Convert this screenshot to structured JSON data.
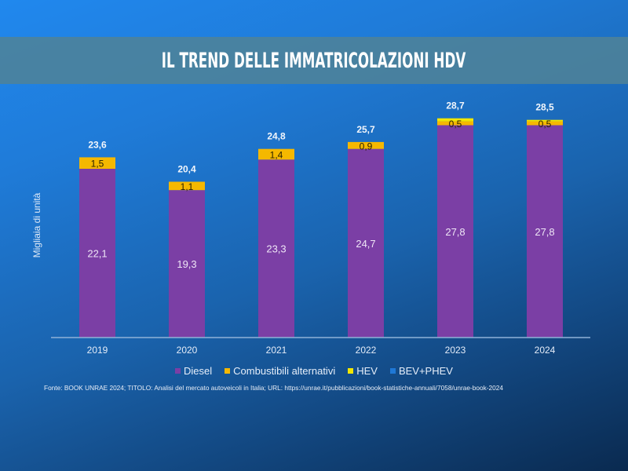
{
  "header": {
    "title": "IL TREND DELLE IMMATRICOLAZIONI HDV"
  },
  "source_note": "Fonte: BOOK UNRAE 2024; TITOLO: Analisi del mercato autoveicoli in Italia; URL: https://unrae.it/pubblicazioni/book-statistiche-annuali/7058/unrae-book-2024",
  "colors": {
    "diesel": "#7b3fa5",
    "combustibili_alternativi": "#f5b800",
    "hev": "#f2e600",
    "bev_phev": "#1f78d6",
    "background_top": "#2088ee",
    "background_bottom": "#0a2a50",
    "title_band": "#50829a"
  },
  "chart_data": {
    "type": "bar",
    "stacked": true,
    "title": "IL TREND DELLE IMMATRICOLAZIONI HDV",
    "xlabel": "",
    "ylabel": "Migliaia di unità",
    "categories": [
      "2019",
      "2020",
      "2021",
      "2022",
      "2023",
      "2024"
    ],
    "series": [
      {
        "name": "Diesel",
        "values": [
          22.1,
          19.3,
          23.3,
          24.7,
          27.8,
          27.8
        ],
        "labels": [
          "22,1",
          "19,3",
          "23,3",
          "24,7",
          "27,8",
          "27,8"
        ]
      },
      {
        "name": "Combustibili alternativi",
        "values": [
          1.5,
          1.1,
          1.4,
          0.9,
          0.5,
          0.5
        ],
        "labels": [
          "1,5",
          "1,1",
          "1,4",
          "0,9",
          "0,5",
          "0,5"
        ]
      },
      {
        "name": "HEV",
        "values": [
          0,
          0,
          0,
          0,
          0.4,
          0.2
        ],
        "labels": [
          "",
          "",
          "",
          "",
          "",
          ""
        ]
      },
      {
        "name": "BEV+PHEV",
        "values": [
          0,
          0,
          0,
          0,
          0,
          0
        ],
        "labels": [
          "",
          "",
          "",
          "",
          "",
          ""
        ]
      }
    ],
    "totals": [
      23.6,
      20.4,
      24.8,
      25.7,
      28.7,
      28.5
    ],
    "total_labels": [
      "23,6",
      "20,4",
      "24,8",
      "25,7",
      "28,7",
      "28,5"
    ],
    "ylim": [
      0,
      30
    ],
    "grid": false,
    "y_axis_visible": false,
    "legend": {
      "placement": "bottom",
      "entries": [
        "Diesel",
        "Combustibili alternativi",
        "HEV",
        "BEV+PHEV"
      ]
    }
  }
}
